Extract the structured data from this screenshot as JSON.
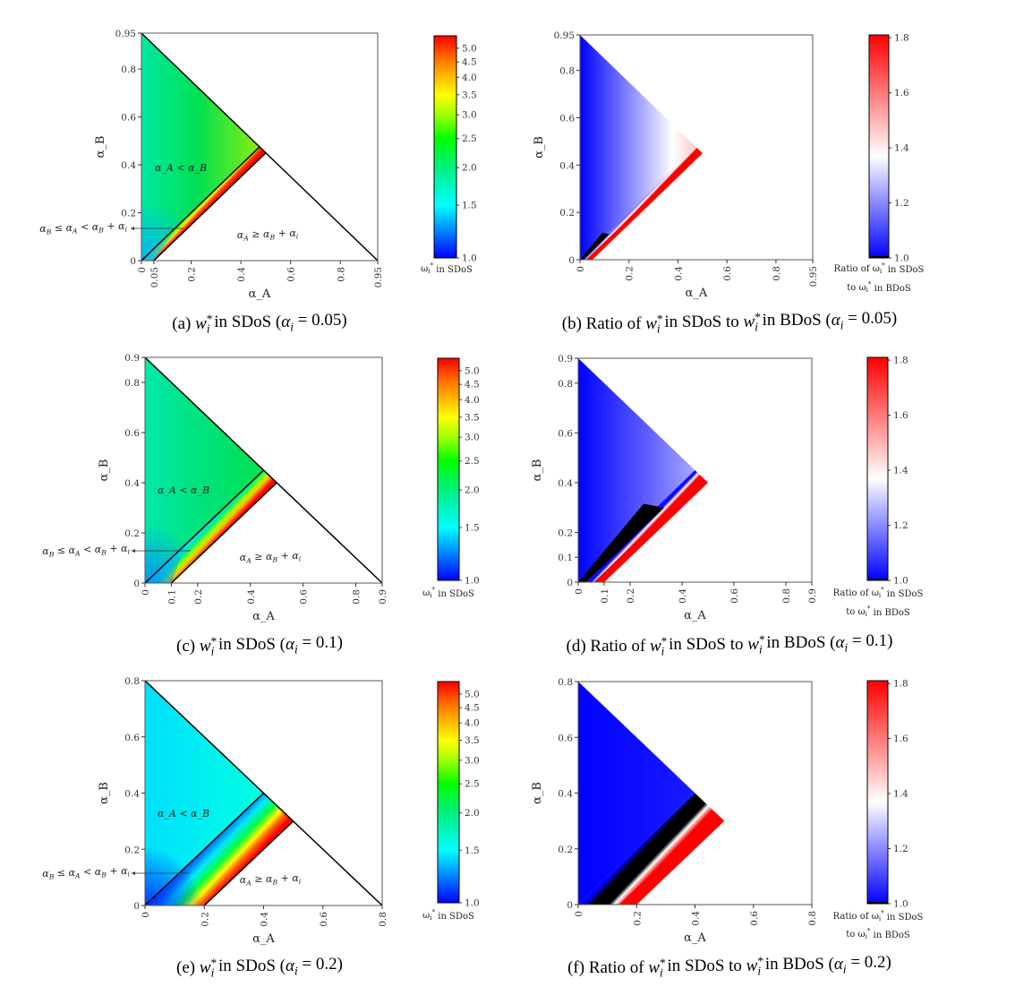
{
  "chart_data": [
    {
      "id": "a",
      "type": "heatmap",
      "colormap": "jet",
      "scale": "log",
      "alpha_i": 0.05,
      "xlim": [
        0,
        0.95
      ],
      "ylim": [
        0,
        0.95
      ],
      "xticks": [
        "0",
        "0.05",
        "0.2",
        "0.4",
        "0.6",
        "0.8",
        "0.95"
      ],
      "xtick_values": [
        0,
        0.05,
        0.2,
        0.4,
        0.6,
        0.8,
        0.95
      ],
      "yticks": [
        "0",
        "0.2",
        "0.4",
        "0.6",
        "0.8",
        "0.95"
      ],
      "ytick_values": [
        0,
        0.2,
        0.4,
        0.6,
        0.8,
        0.95
      ],
      "xlabel": "α_A",
      "ylabel": "α_B",
      "annotations": [
        "α_A < α_B",
        "α_B ≤ α_A < α_B + α_i",
        "α_A ≥ α_B + α_i"
      ],
      "colorbar": {
        "ticks": [
          "1.0",
          "1.5",
          "2.0",
          "2.5",
          "3.0",
          "3.5",
          "4.0",
          "4.5",
          "5.0"
        ],
        "tick_values": [
          1.0,
          1.5,
          2.0,
          2.5,
          3.0,
          3.5,
          4.0,
          4.5,
          5.0
        ],
        "range": [
          1.0,
          5.5
        ],
        "label": [
          "ω_i^* in SDoS"
        ],
        "stops": [
          [
            1.0,
            "#0000ff"
          ],
          [
            1.25,
            "#0090ff"
          ],
          [
            1.5,
            "#00ffff"
          ],
          [
            2.0,
            "#00f080"
          ],
          [
            2.5,
            "#00ff00"
          ],
          [
            3.0,
            "#a0ff00"
          ],
          [
            3.5,
            "#ffff00"
          ],
          [
            4.5,
            "#ff8000"
          ],
          [
            5.5,
            "#ff0000"
          ]
        ]
      },
      "caption": [
        {
          "t": "(a)  "
        },
        {
          "m": "w",
          "sub": "i",
          "sup": "*"
        },
        {
          "t": "  in SDoS ("
        },
        {
          "m": "α",
          "sub": "i"
        },
        {
          "t": " = 0.05)"
        }
      ]
    },
    {
      "id": "b",
      "type": "heatmap",
      "colormap": "bwr",
      "scale": "linear",
      "alpha_i": 0.05,
      "xlim": [
        0,
        0.95
      ],
      "ylim": [
        0,
        0.95
      ],
      "xticks": [
        "0",
        "0.2",
        "0.4",
        "0.6",
        "0.8",
        "0.95"
      ],
      "xtick_values": [
        0,
        0.2,
        0.4,
        0.6,
        0.8,
        0.95
      ],
      "yticks": [
        "0",
        "0.2",
        "0.4",
        "0.6",
        "0.8",
        "0.95"
      ],
      "ytick_values": [
        0,
        0.2,
        0.4,
        0.6,
        0.8,
        0.95
      ],
      "xlabel": "α_A",
      "ylabel": "α_B",
      "annotations": [],
      "colorbar": {
        "ticks": [
          "1.0",
          "1.2",
          "1.4",
          "1.6",
          "1.8"
        ],
        "tick_values": [
          1.0,
          1.2,
          1.4,
          1.6,
          1.8
        ],
        "range": [
          1.0,
          1.81
        ],
        "label": [
          "Ratio of ω_i^* in SDoS",
          "to ω_i^* in BDoS"
        ],
        "stops": [
          [
            1.0,
            "#0000ff"
          ],
          [
            1.37,
            "#ffffff"
          ],
          [
            1.81,
            "#ff0000"
          ]
        ]
      },
      "caption": [
        {
          "t": "(b)  Ratio of "
        },
        {
          "m": "w",
          "sub": "i",
          "sup": "*"
        },
        {
          "t": "  in SDoS to "
        },
        {
          "m": "w",
          "sub": "i",
          "sup": "*"
        },
        {
          "t": "  in BDoS ("
        },
        {
          "m": "α",
          "sub": "i"
        },
        {
          "t": " = 0.05)"
        }
      ]
    },
    {
      "id": "c",
      "type": "heatmap",
      "colormap": "jet",
      "scale": "log",
      "alpha_i": 0.1,
      "xlim": [
        0,
        0.9
      ],
      "ylim": [
        0,
        0.9
      ],
      "xticks": [
        "0",
        "0.1",
        "0.2",
        "0.4",
        "0.6",
        "0.8",
        "0.9"
      ],
      "xtick_values": [
        0,
        0.1,
        0.2,
        0.4,
        0.6,
        0.8,
        0.9
      ],
      "yticks": [
        "0",
        "0.2",
        "0.4",
        "0.6",
        "0.8",
        "0.9"
      ],
      "ytick_values": [
        0,
        0.2,
        0.4,
        0.6,
        0.8,
        0.9
      ],
      "xlabel": "α_A",
      "ylabel": "α_B",
      "annotations": [
        "α_A < α_B",
        "α_B ≤ α_A < α_B + α_i",
        "α_A ≥ α_B + α_i"
      ],
      "colorbar": {
        "ticks": [
          "1.0",
          "1.5",
          "2.0",
          "2.5",
          "3.0",
          "3.5",
          "4.0",
          "4.5",
          "5.0"
        ],
        "tick_values": [
          1.0,
          1.5,
          2.0,
          2.5,
          3.0,
          3.5,
          4.0,
          4.5,
          5.0
        ],
        "range": [
          1.0,
          5.5
        ],
        "label": [
          "ω_i^* in SDoS"
        ],
        "stops": [
          [
            1.0,
            "#0000ff"
          ],
          [
            1.25,
            "#0090ff"
          ],
          [
            1.5,
            "#00ffff"
          ],
          [
            2.0,
            "#00f080"
          ],
          [
            2.5,
            "#00ff00"
          ],
          [
            3.0,
            "#a0ff00"
          ],
          [
            3.5,
            "#ffff00"
          ],
          [
            4.5,
            "#ff8000"
          ],
          [
            5.5,
            "#ff0000"
          ]
        ]
      },
      "caption": [
        {
          "t": "(c)  "
        },
        {
          "m": "w",
          "sub": "i",
          "sup": "*"
        },
        {
          "t": "  in SDoS ("
        },
        {
          "m": "α",
          "sub": "i"
        },
        {
          "t": " = 0.1)"
        }
      ]
    },
    {
      "id": "d",
      "type": "heatmap",
      "colormap": "bwr",
      "scale": "linear",
      "alpha_i": 0.1,
      "xlim": [
        0,
        0.9
      ],
      "ylim": [
        0,
        0.9
      ],
      "xticks": [
        "0",
        "0.1",
        "0.2",
        "0.4",
        "0.6",
        "0.8",
        "0.9"
      ],
      "xtick_values": [
        0,
        0.1,
        0.2,
        0.4,
        0.6,
        0.8,
        0.9
      ],
      "yticks": [
        "0",
        "0.1",
        "0.2",
        "0.4",
        "0.6",
        "0.8",
        "0.9"
      ],
      "ytick_values": [
        0,
        0.1,
        0.2,
        0.4,
        0.6,
        0.8,
        0.9
      ],
      "xlabel": "α_A",
      "ylabel": "α_B",
      "annotations": [],
      "colorbar": {
        "ticks": [
          "1.0",
          "1.2",
          "1.4",
          "1.6",
          "1.8"
        ],
        "tick_values": [
          1.0,
          1.2,
          1.4,
          1.6,
          1.8
        ],
        "range": [
          1.0,
          1.81
        ],
        "label": [
          "Ratio of ω_i^* in SDoS",
          "to ω_i^* in BDoS"
        ],
        "stops": [
          [
            1.0,
            "#0000ff"
          ],
          [
            1.37,
            "#ffffff"
          ],
          [
            1.81,
            "#ff0000"
          ]
        ]
      },
      "caption": [
        {
          "t": "(d)  Ratio of "
        },
        {
          "m": "w",
          "sub": "i",
          "sup": "*"
        },
        {
          "t": "  in SDoS to "
        },
        {
          "m": "w",
          "sub": "i",
          "sup": "*"
        },
        {
          "t": "  in BDoS ("
        },
        {
          "m": "α",
          "sub": "i"
        },
        {
          "t": " = 0.1)"
        }
      ]
    },
    {
      "id": "e",
      "type": "heatmap",
      "colormap": "jet",
      "scale": "log",
      "alpha_i": 0.2,
      "xlim": [
        0,
        0.8
      ],
      "ylim": [
        0,
        0.8
      ],
      "xticks": [
        "0",
        "0.2",
        "0.4",
        "0.6",
        "0.8"
      ],
      "xtick_values": [
        0,
        0.2,
        0.4,
        0.6,
        0.8
      ],
      "yticks": [
        "0",
        "0.2",
        "0.4",
        "0.6",
        "0.8"
      ],
      "ytick_values": [
        0,
        0.2,
        0.4,
        0.6,
        0.8
      ],
      "xlabel": "α_A",
      "ylabel": "α_B",
      "annotations": [
        "α_A < α_B",
        "α_B ≤ α_A < α_B + α_i",
        "α_A ≥ α_B + α_i"
      ],
      "colorbar": {
        "ticks": [
          "1.0",
          "1.5",
          "2.0",
          "2.5",
          "3.0",
          "3.5",
          "4.0",
          "4.5",
          "5.0"
        ],
        "tick_values": [
          1.0,
          1.5,
          2.0,
          2.5,
          3.0,
          3.5,
          4.0,
          4.5,
          5.0
        ],
        "range": [
          1.0,
          5.5
        ],
        "label": [
          "ω_i^* in SDoS"
        ],
        "stops": [
          [
            1.0,
            "#0000ff"
          ],
          [
            1.25,
            "#0090ff"
          ],
          [
            1.5,
            "#00ffff"
          ],
          [
            2.0,
            "#00f080"
          ],
          [
            2.5,
            "#00ff00"
          ],
          [
            3.0,
            "#a0ff00"
          ],
          [
            3.5,
            "#ffff00"
          ],
          [
            4.5,
            "#ff8000"
          ],
          [
            5.5,
            "#ff0000"
          ]
        ]
      },
      "caption": [
        {
          "t": "(e)  "
        },
        {
          "m": "w",
          "sub": "i",
          "sup": "*"
        },
        {
          "t": "  in SDoS ("
        },
        {
          "m": "α",
          "sub": "i"
        },
        {
          "t": " = 0.2)"
        }
      ]
    },
    {
      "id": "f",
      "type": "heatmap",
      "colormap": "bwr",
      "scale": "linear",
      "alpha_i": 0.2,
      "xlim": [
        0,
        0.8
      ],
      "ylim": [
        0,
        0.8
      ],
      "xticks": [
        "0",
        "0.2",
        "0.4",
        "0.6",
        "0.8"
      ],
      "xtick_values": [
        0,
        0.2,
        0.4,
        0.6,
        0.8
      ],
      "yticks": [
        "0",
        "0.2",
        "0.4",
        "0.6",
        "0.8"
      ],
      "ytick_values": [
        0,
        0.2,
        0.4,
        0.6,
        0.8
      ],
      "xlabel": "α_A",
      "ylabel": "α_B",
      "annotations": [],
      "colorbar": {
        "ticks": [
          "1.0",
          "1.2",
          "1.4",
          "1.6",
          "1.8"
        ],
        "tick_values": [
          1.0,
          1.2,
          1.4,
          1.6,
          1.8
        ],
        "range": [
          1.0,
          1.81
        ],
        "label": [
          "Ratio of ω_i^* in SDoS",
          "to ω_i^* in BDoS"
        ],
        "stops": [
          [
            1.0,
            "#0000ff"
          ],
          [
            1.37,
            "#ffffff"
          ],
          [
            1.81,
            "#ff0000"
          ]
        ]
      },
      "caption": [
        {
          "t": "(f)  Ratio of "
        },
        {
          "m": "w",
          "sub": "i",
          "sup": "*"
        },
        {
          "t": "  in SDoS to "
        },
        {
          "m": "w",
          "sub": "i",
          "sup": "*"
        },
        {
          "t": "  in BDoS ("
        },
        {
          "m": "α",
          "sub": "i"
        },
        {
          "t": " = 0.2)"
        }
      ]
    }
  ]
}
